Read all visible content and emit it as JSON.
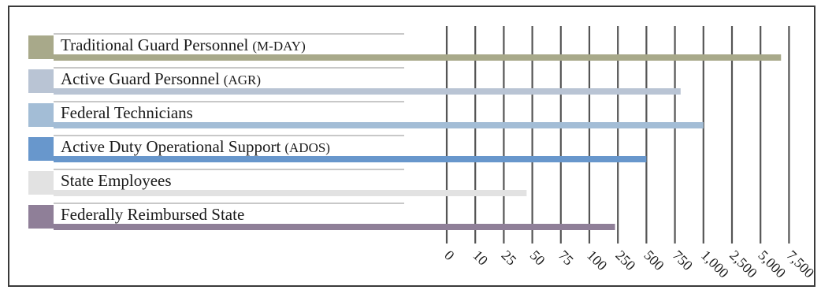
{
  "chart_data": {
    "type": "bar",
    "orientation": "horizontal",
    "axis_scale": "categorical-ticks",
    "grid": true,
    "tick_labels": [
      "0",
      "10",
      "25",
      "50",
      "75",
      "100",
      "250",
      "500",
      "750",
      "1,000",
      "2,500",
      "5,000",
      "7,500"
    ],
    "categories": [
      {
        "name": "Traditional Guard Personnel",
        "abbr": "(M-DAY)",
        "value": 6800,
        "color": "#a8a98a"
      },
      {
        "name": "Active Guard Personnel",
        "abbr": "(AGR)",
        "value": 800,
        "color": "#b9c4d4"
      },
      {
        "name": "Federal Technicians",
        "abbr": "",
        "value": 1000,
        "color": "#a3bdd6"
      },
      {
        "name": "Active Duty Operational Support",
        "abbr": "(ADOS)",
        "value": 500,
        "color": "#6897cc"
      },
      {
        "name": "State Employees",
        "abbr": "",
        "value": 45,
        "color": "#e2e2e2"
      },
      {
        "name": "Federally Reimbursed State",
        "abbr": "",
        "value": 235,
        "color": "#8f7f98"
      }
    ]
  }
}
